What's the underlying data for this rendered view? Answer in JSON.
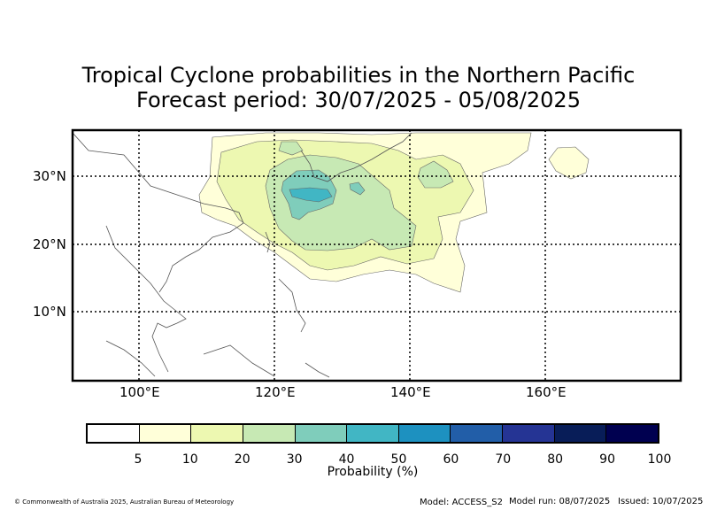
{
  "title_line1": "Tropical Cyclone probabilities in the Northern Pacific",
  "title_line2": "Forecast period: 30/07/2025 - 05/08/2025",
  "map": {
    "lat_labels": [
      "30°N",
      "20°N",
      "10°N"
    ],
    "lon_labels": [
      "100°E",
      "120°E",
      "140°E",
      "160°E"
    ],
    "extent": {
      "lon_min": 90,
      "lon_max": 180,
      "lat_min": 0,
      "lat_max": 37
    },
    "contour_fill_colors": [
      "#ffffd9",
      "#edf8b1",
      "#c7e9b4",
      "#7fcdbb",
      "#41b6c4"
    ]
  },
  "colorbar": {
    "label": "Probability (%)",
    "ticks": [
      "5",
      "10",
      "20",
      "30",
      "40",
      "50",
      "60",
      "70",
      "80",
      "90",
      "100"
    ],
    "colors": [
      "#ffffff",
      "#ffffd9",
      "#edf8b1",
      "#c7e9b4",
      "#7fcdbb",
      "#41b6c4",
      "#1d91c0",
      "#225ea8",
      "#253494",
      "#081d58",
      "#000050"
    ]
  },
  "footer": {
    "copyright": "© Commonwealth of Australia 2025, Australian Bureau of Meteorology",
    "model": "Model: ACCESS_S2",
    "model_run": "Model run: 08/07/2025",
    "issued": "Issued: 10/07/2025"
  }
}
